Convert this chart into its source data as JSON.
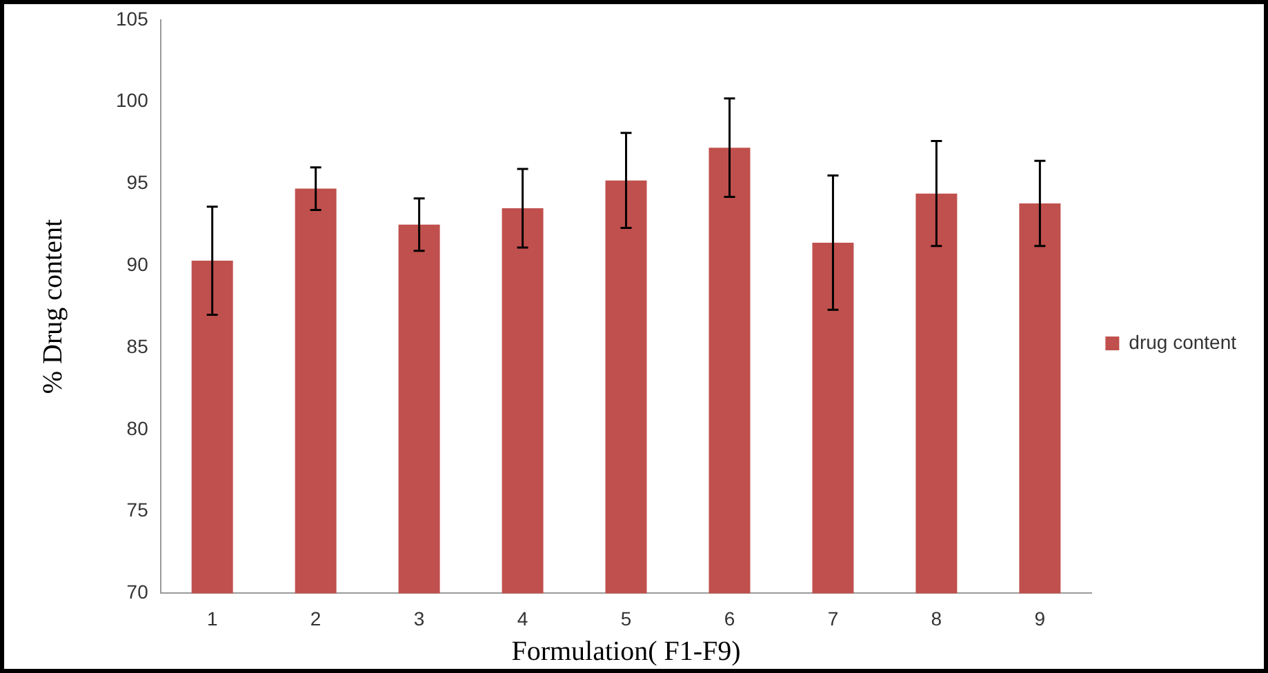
{
  "chart_data": {
    "type": "bar",
    "xlabel": "Formulation( F1-F9)",
    "ylabel": "% Drug content",
    "categories": [
      "1",
      "2",
      "3",
      "4",
      "5",
      "6",
      "7",
      "8",
      "9"
    ],
    "series": [
      {
        "name": "drug content",
        "color": "#c0504d",
        "values": [
          90.3,
          94.7,
          92.5,
          93.5,
          95.2,
          97.2,
          91.4,
          94.4,
          93.8
        ],
        "errors": [
          3.3,
          1.3,
          1.6,
          2.4,
          2.9,
          3.0,
          4.1,
          3.2,
          2.6
        ]
      }
    ],
    "ylim": [
      70,
      105
    ],
    "yticks": [
      70,
      75,
      80,
      85,
      90,
      95,
      100,
      105
    ],
    "grid": false,
    "legend": "right"
  }
}
